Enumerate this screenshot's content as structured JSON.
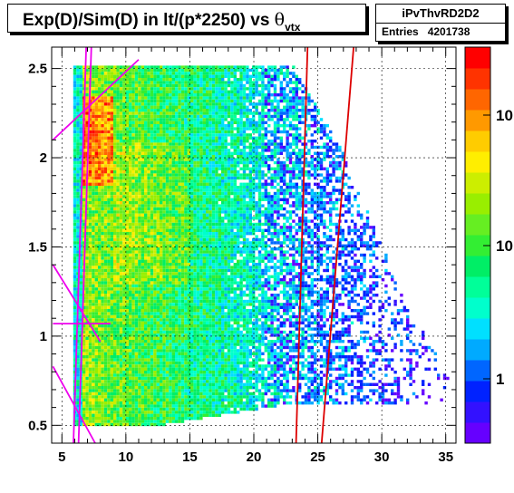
{
  "title_box": {
    "text": "Exp(D)/Sim(D) in lt/(p*2250) vs",
    "theta": "θ",
    "theta_sub": "vtx"
  },
  "stats_box": {
    "name": "iPvThvRD2D2",
    "entries_label": "Entries",
    "entries_value": "4201738"
  },
  "chart_data": {
    "type": "heatmap",
    "title": "Exp(D)/Sim(D) in lt/(p*2250) vs θvtx",
    "xlabel": "",
    "ylabel": "",
    "xlim": [
      4.2,
      35.8
    ],
    "ylim": [
      0.4,
      2.62
    ],
    "x_ticks": [
      5,
      10,
      15,
      20,
      25,
      30,
      35
    ],
    "y_ticks": [
      0.5,
      1,
      1.5,
      2,
      2.5
    ],
    "y_tick_labels": [
      "0.5",
      "1",
      "1.5",
      "2",
      "2.5"
    ],
    "grid": true,
    "z_scale": "log",
    "z_tick_labels": [
      "1",
      "10",
      "10"
    ],
    "palette": [
      "#6600ff",
      "#3311ff",
      "#0022ff",
      "#0066ff",
      "#00aaff",
      "#00e0ff",
      "#00ffcc",
      "#00ff99",
      "#00ee66",
      "#33ee33",
      "#66ee22",
      "#99ee00",
      "#ccee00",
      "#ffee00",
      "#ffcc00",
      "#ff9900",
      "#ff6600",
      "#ff3300",
      "#ff0000"
    ],
    "overlay_lines": [
      {
        "color": "#dd0000",
        "points": [
          [
            23.3,
            0.4
          ],
          [
            24.2,
            2.62
          ]
        ]
      },
      {
        "color": "#dd0000",
        "points": [
          [
            25.3,
            0.4
          ],
          [
            27.8,
            2.62
          ]
        ]
      },
      {
        "color": "#ee00ee",
        "points": [
          [
            5.9,
            0.4
          ],
          [
            6.9,
            2.62
          ]
        ]
      },
      {
        "color": "#ee00ee",
        "points": [
          [
            6.3,
            0.4
          ],
          [
            7.3,
            2.62
          ]
        ]
      },
      {
        "color": "#ee00ee",
        "points": [
          [
            4.3,
            2.1
          ],
          [
            11.0,
            2.55
          ]
        ]
      },
      {
        "color": "#ee00ee",
        "points": [
          [
            4.3,
            1.4
          ],
          [
            8.0,
            0.97
          ]
        ]
      },
      {
        "color": "#ee00ee",
        "points": [
          [
            4.3,
            1.07
          ],
          [
            8.8,
            1.07
          ]
        ]
      },
      {
        "color": "#ee00ee",
        "points": [
          [
            4.3,
            0.83
          ],
          [
            7.6,
            0.4
          ]
        ]
      }
    ]
  }
}
